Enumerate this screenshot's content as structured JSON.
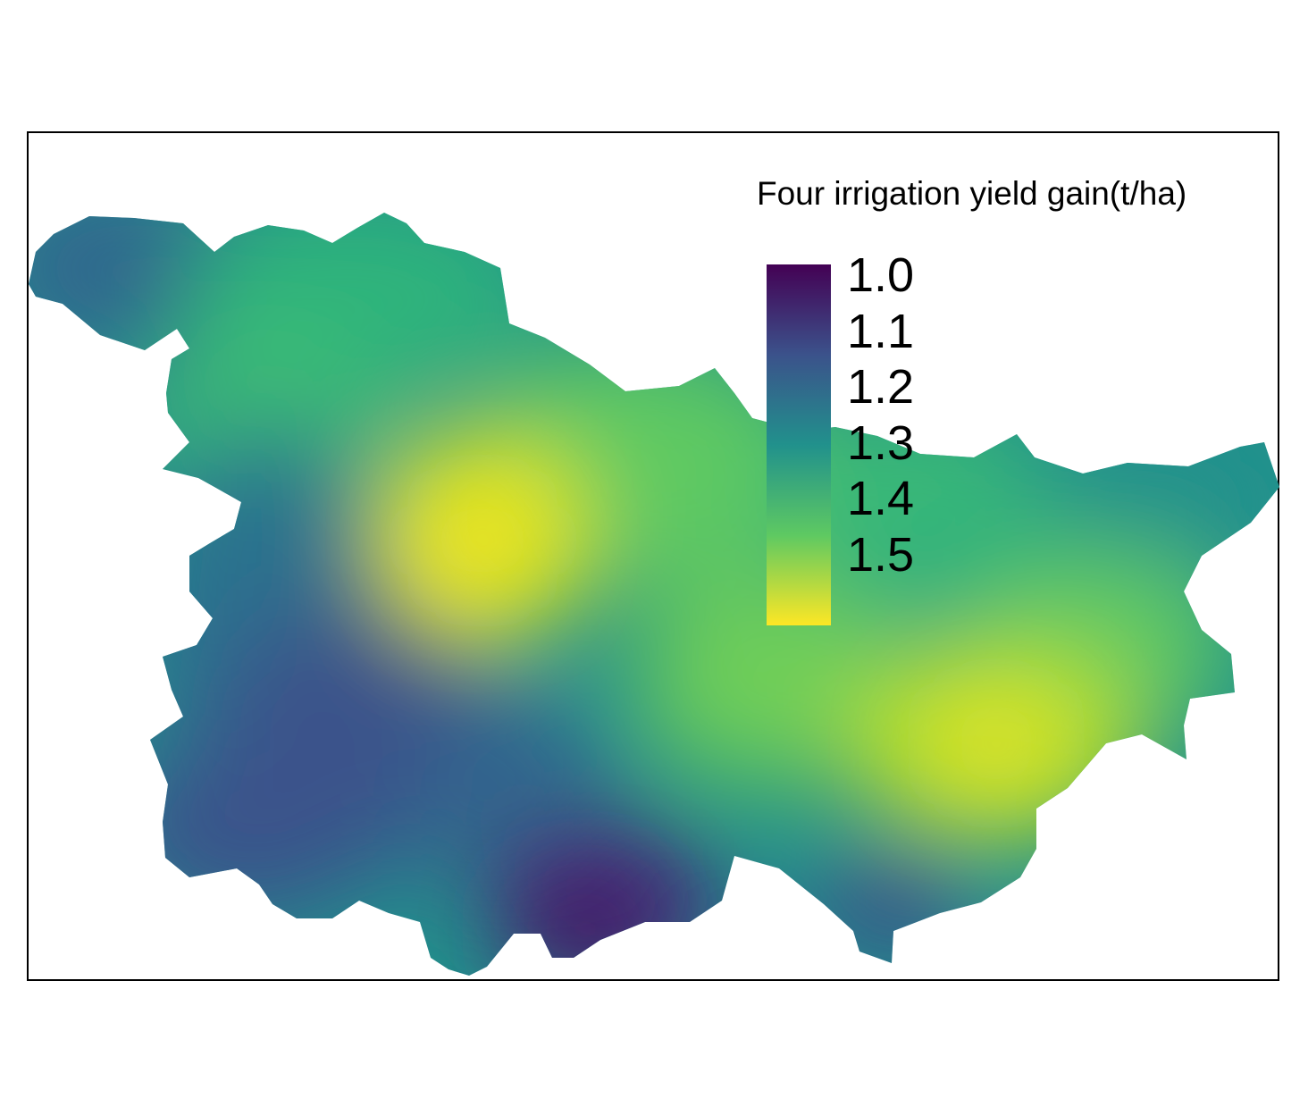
{
  "legend": {
    "title": "Four irrigation yield gain(t/ha)",
    "min": 1.0,
    "max": 1.55,
    "ticks": [
      {
        "label": "1.0",
        "value": 1.0
      },
      {
        "label": "1.1",
        "value": 1.1
      },
      {
        "label": "1.2",
        "value": 1.2
      },
      {
        "label": "1.3",
        "value": 1.3
      },
      {
        "label": "1.4",
        "value": 1.4
      },
      {
        "label": "1.5",
        "value": 1.5
      }
    ]
  },
  "colors": {
    "scale": [
      "#440154",
      "#3b528b",
      "#21918c",
      "#5ec962",
      "#fde725"
    ],
    "frame": "#000000",
    "background": "#ffffff"
  }
}
